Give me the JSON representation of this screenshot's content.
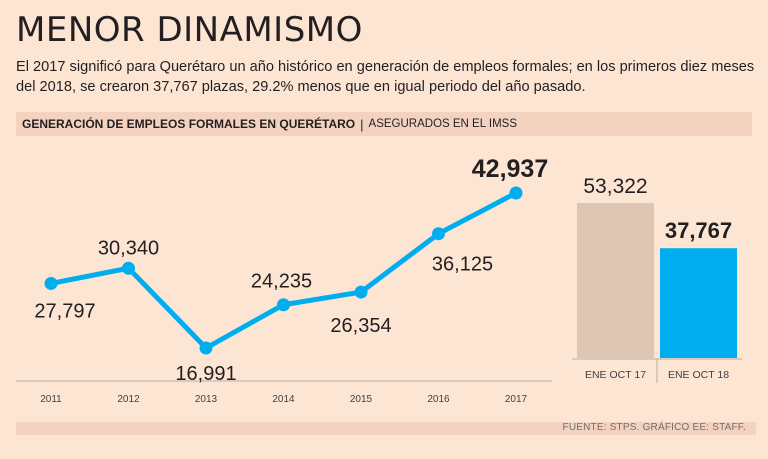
{
  "header": {
    "title": "MENOR DINAMISMO",
    "subtitle": "El 2017 significó para Querétaro un año histórico en generación de empleos formales; en los primeros diez meses del 2018, se crearon 37,767 plazas, 29.2% menos que en igual periodo del año pasado."
  },
  "band": {
    "title": "GENERACIÓN DE EMPLEOS FORMALES EN QUERÉTARO",
    "separator": "|",
    "subtitle": "ASEGURADOS EN EL IMSS"
  },
  "footer": {
    "source": "FUENTE: STPS. GRÁFICO EE: STAFF."
  },
  "colors": {
    "line": "#00aeef",
    "bar_2017": "#ddc7b4",
    "bar_2018": "#00aeef",
    "text": "#231f20",
    "axis": "#b8b0a8"
  },
  "chart_data": [
    {
      "type": "line",
      "categories": [
        "2011",
        "2012",
        "2013",
        "2014",
        "2015",
        "2016",
        "2017"
      ],
      "values": [
        27797,
        30340,
        16991,
        24235,
        26354,
        36125,
        42937
      ],
      "labels": [
        "27,797",
        "30,340",
        "16,991",
        "24,235",
        "26,354",
        "36,125",
        "42,937"
      ],
      "highlight_index": 6,
      "ylim": [
        12000,
        46000
      ]
    },
    {
      "type": "bar",
      "categories": [
        "ENE OCT 17",
        "ENE OCT 18"
      ],
      "values": [
        53322,
        37767
      ],
      "labels": [
        "53,322",
        "37,767"
      ],
      "highlight_index": 1,
      "ylim": [
        0,
        60000
      ]
    }
  ]
}
